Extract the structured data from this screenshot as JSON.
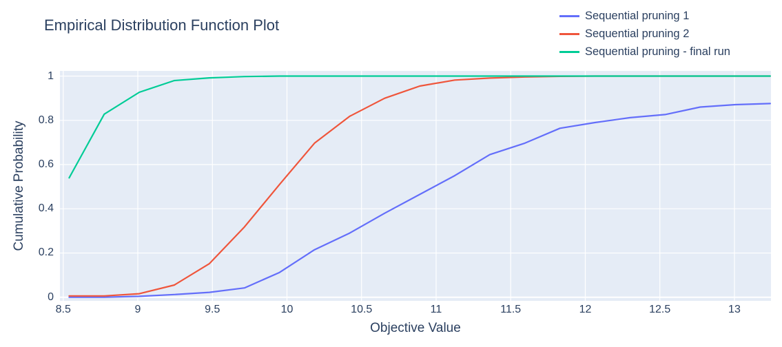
{
  "colors": {
    "text": "#2a3f5f",
    "plot_background": "#e5ecf6",
    "gridline": "#ffffff",
    "series_blue": "#636efa",
    "series_red": "#ef553b",
    "series_green": "#00cc96"
  },
  "chart_data": {
    "type": "line",
    "title": "Empirical Distribution Function Plot",
    "xlabel": "Objective Value",
    "ylabel": "Cumulative Probability",
    "legend_position": "top-right",
    "grid": true,
    "xlim": [
      8.478,
      13.245
    ],
    "ylim": [
      -0.0165,
      1.0235
    ],
    "xticks": [
      8.5,
      9,
      9.5,
      10,
      10.5,
      11,
      11.5,
      12,
      12.5,
      13
    ],
    "yticks": [
      0,
      0.2,
      0.4,
      0.6,
      0.8,
      1
    ],
    "x": [
      8.54,
      8.775,
      9.01,
      9.245,
      9.48,
      9.715,
      9.95,
      10.185,
      10.42,
      10.655,
      10.89,
      11.125,
      11.36,
      11.595,
      11.83,
      12.065,
      12.3,
      12.535,
      12.77,
      13.005,
      13.24
    ],
    "series": [
      {
        "name": "Sequential pruning 1",
        "color": "#636efa",
        "values": [
          0,
          0,
          0.004,
          0.012,
          0.022,
          0.042,
          0.112,
          0.215,
          0.29,
          0.38,
          0.465,
          0.55,
          0.645,
          0.697,
          0.764,
          0.79,
          0.812,
          0.826,
          0.86,
          0.871,
          0.876
        ]
      },
      {
        "name": "Sequential pruning 2",
        "color": "#ef553b",
        "values": [
          0.006,
          0.006,
          0.016,
          0.055,
          0.152,
          0.318,
          0.51,
          0.697,
          0.818,
          0.9,
          0.955,
          0.982,
          0.991,
          0.996,
          0.999,
          1,
          1,
          1,
          1,
          1,
          1
        ]
      },
      {
        "name": "Sequential pruning - final run",
        "color": "#00cc96",
        "values": [
          0.54,
          0.828,
          0.927,
          0.98,
          0.992,
          0.998,
          1,
          1,
          1,
          1,
          1,
          1,
          1,
          1,
          1,
          1,
          1,
          1,
          1,
          1,
          1
        ]
      }
    ]
  }
}
